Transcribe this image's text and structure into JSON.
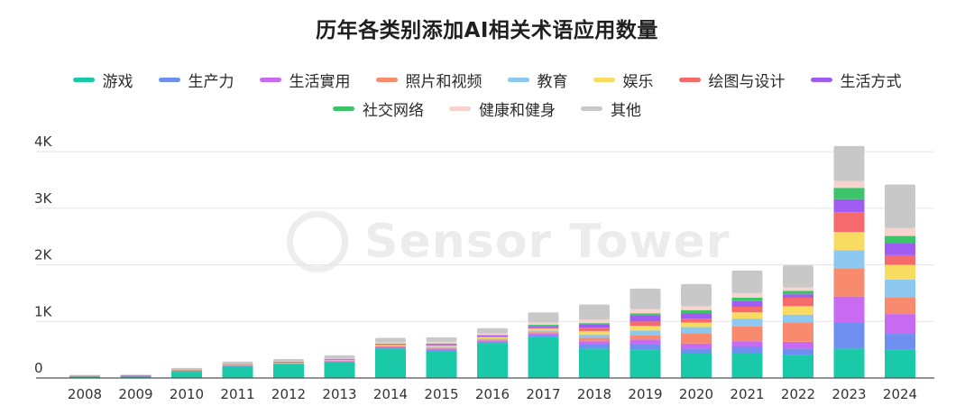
{
  "chart_data": {
    "type": "bar",
    "stacked": true,
    "title": "历年各类别添加AI相关术语应用数量",
    "watermark": "Sensor Tower",
    "xlabel": "",
    "ylabel": "",
    "ylim": [
      0,
      4400
    ],
    "y_ticks": [
      {
        "value": 0,
        "label": "0"
      },
      {
        "value": 1000,
        "label": "1K"
      },
      {
        "value": 2000,
        "label": "2K"
      },
      {
        "value": 3000,
        "label": "3K"
      },
      {
        "value": 4000,
        "label": "4K"
      }
    ],
    "categories": [
      "2008",
      "2009",
      "2010",
      "2011",
      "2012",
      "2013",
      "2014",
      "2015",
      "2016",
      "2017",
      "2018",
      "2019",
      "2020",
      "2021",
      "2022",
      "2023",
      "2024"
    ],
    "legend_layout": [
      [
        0,
        1,
        2,
        3,
        4,
        5,
        6,
        7
      ],
      [
        8,
        9,
        10
      ]
    ],
    "series": [
      {
        "name": "游戏",
        "color": "#19C9A8",
        "values": [
          30,
          35,
          110,
          200,
          240,
          280,
          520,
          480,
          620,
          720,
          520,
          500,
          430,
          430,
          400,
          520,
          500
        ]
      },
      {
        "name": "生产力",
        "color": "#6E8EF0",
        "values": [
          5,
          5,
          10,
          10,
          10,
          10,
          15,
          20,
          20,
          30,
          70,
          90,
          90,
          120,
          120,
          460,
          280
        ]
      },
      {
        "name": "生活實用",
        "color": "#C86BF2",
        "values": [
          5,
          5,
          10,
          10,
          10,
          10,
          15,
          20,
          20,
          30,
          60,
          90,
          90,
          100,
          120,
          460,
          350
        ]
      },
      {
        "name": "照片和视频",
        "color": "#F88A6E",
        "values": [
          3,
          3,
          5,
          5,
          5,
          5,
          10,
          10,
          20,
          30,
          60,
          80,
          180,
          260,
          340,
          500,
          300
        ]
      },
      {
        "name": "教育",
        "color": "#8DC8F0",
        "values": [
          2,
          2,
          5,
          5,
          5,
          5,
          10,
          20,
          20,
          30,
          60,
          80,
          110,
          140,
          140,
          320,
          310
        ]
      },
      {
        "name": "娱乐",
        "color": "#F8DC62",
        "values": [
          2,
          2,
          5,
          5,
          5,
          10,
          15,
          20,
          20,
          30,
          60,
          80,
          80,
          110,
          150,
          320,
          260
        ]
      },
      {
        "name": "绘图与设计",
        "color": "#F56A6A",
        "values": [
          1,
          1,
          3,
          5,
          5,
          5,
          5,
          10,
          10,
          20,
          60,
          80,
          70,
          100,
          150,
          350,
          170
        ]
      },
      {
        "name": "生活方式",
        "color": "#A05CF0",
        "values": [
          1,
          1,
          3,
          5,
          5,
          10,
          10,
          20,
          20,
          30,
          60,
          100,
          90,
          100,
          60,
          230,
          220
        ]
      },
      {
        "name": "社交网络",
        "color": "#3CC46A",
        "values": [
          1,
          1,
          3,
          5,
          5,
          5,
          10,
          10,
          10,
          20,
          20,
          40,
          60,
          60,
          60,
          200,
          120
        ]
      },
      {
        "name": "健康和健身",
        "color": "#F8D2CC",
        "values": [
          1,
          1,
          3,
          5,
          5,
          10,
          20,
          30,
          30,
          40,
          60,
          80,
          70,
          80,
          60,
          120,
          140
        ]
      },
      {
        "name": "其他",
        "color": "#C8C8C8",
        "values": [
          3,
          3,
          20,
          35,
          40,
          50,
          80,
          80,
          90,
          180,
          270,
          360,
          390,
          400,
          390,
          620,
          770
        ]
      }
    ]
  }
}
